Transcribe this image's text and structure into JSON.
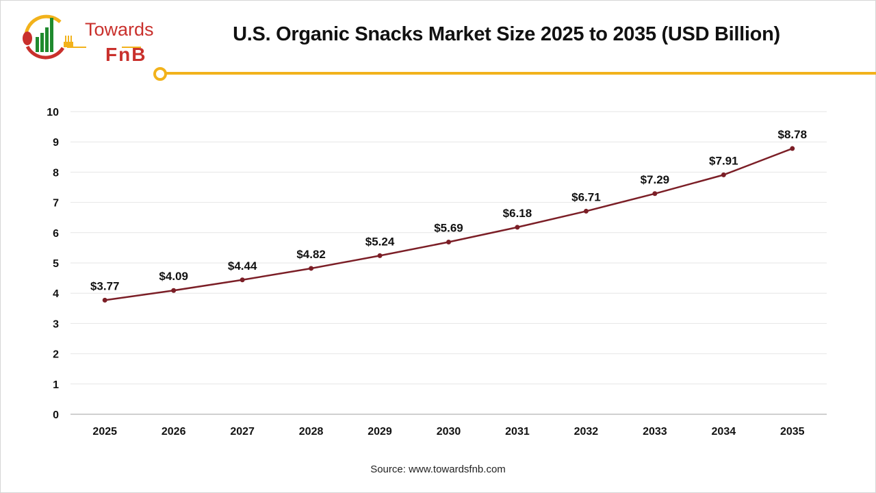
{
  "logo": {
    "line1": "Towards",
    "line2": "FnB"
  },
  "colors": {
    "line": "#7b1e26",
    "accent": "#f2b21b",
    "logo_red": "#c9302c",
    "logo_green": "#1f8a2e",
    "grid": "#e6e6e6"
  },
  "source": "Source: www.towardsfnb.com",
  "chart_data": {
    "type": "line",
    "title": "U.S. Organic Snacks Market Size 2025 to 2035 (USD Billion)",
    "categories": [
      "2025",
      "2026",
      "2027",
      "2028",
      "2029",
      "2030",
      "2031",
      "2032",
      "2033",
      "2034",
      "2035"
    ],
    "values": [
      3.77,
      4.09,
      4.44,
      4.82,
      5.24,
      5.69,
      6.18,
      6.71,
      7.29,
      7.91,
      8.78
    ],
    "data_labels": [
      "$3.77",
      "$4.09",
      "$4.44",
      "$4.82",
      "$5.24",
      "$5.69",
      "$6.18",
      "$6.71",
      "$7.29",
      "$7.91",
      "$8.78"
    ],
    "yticks": [
      "0",
      "1",
      "2",
      "3",
      "4",
      "5",
      "6",
      "7",
      "8",
      "9",
      "10"
    ],
    "ylim": [
      0,
      10
    ],
    "grid": true,
    "legend": "none"
  }
}
